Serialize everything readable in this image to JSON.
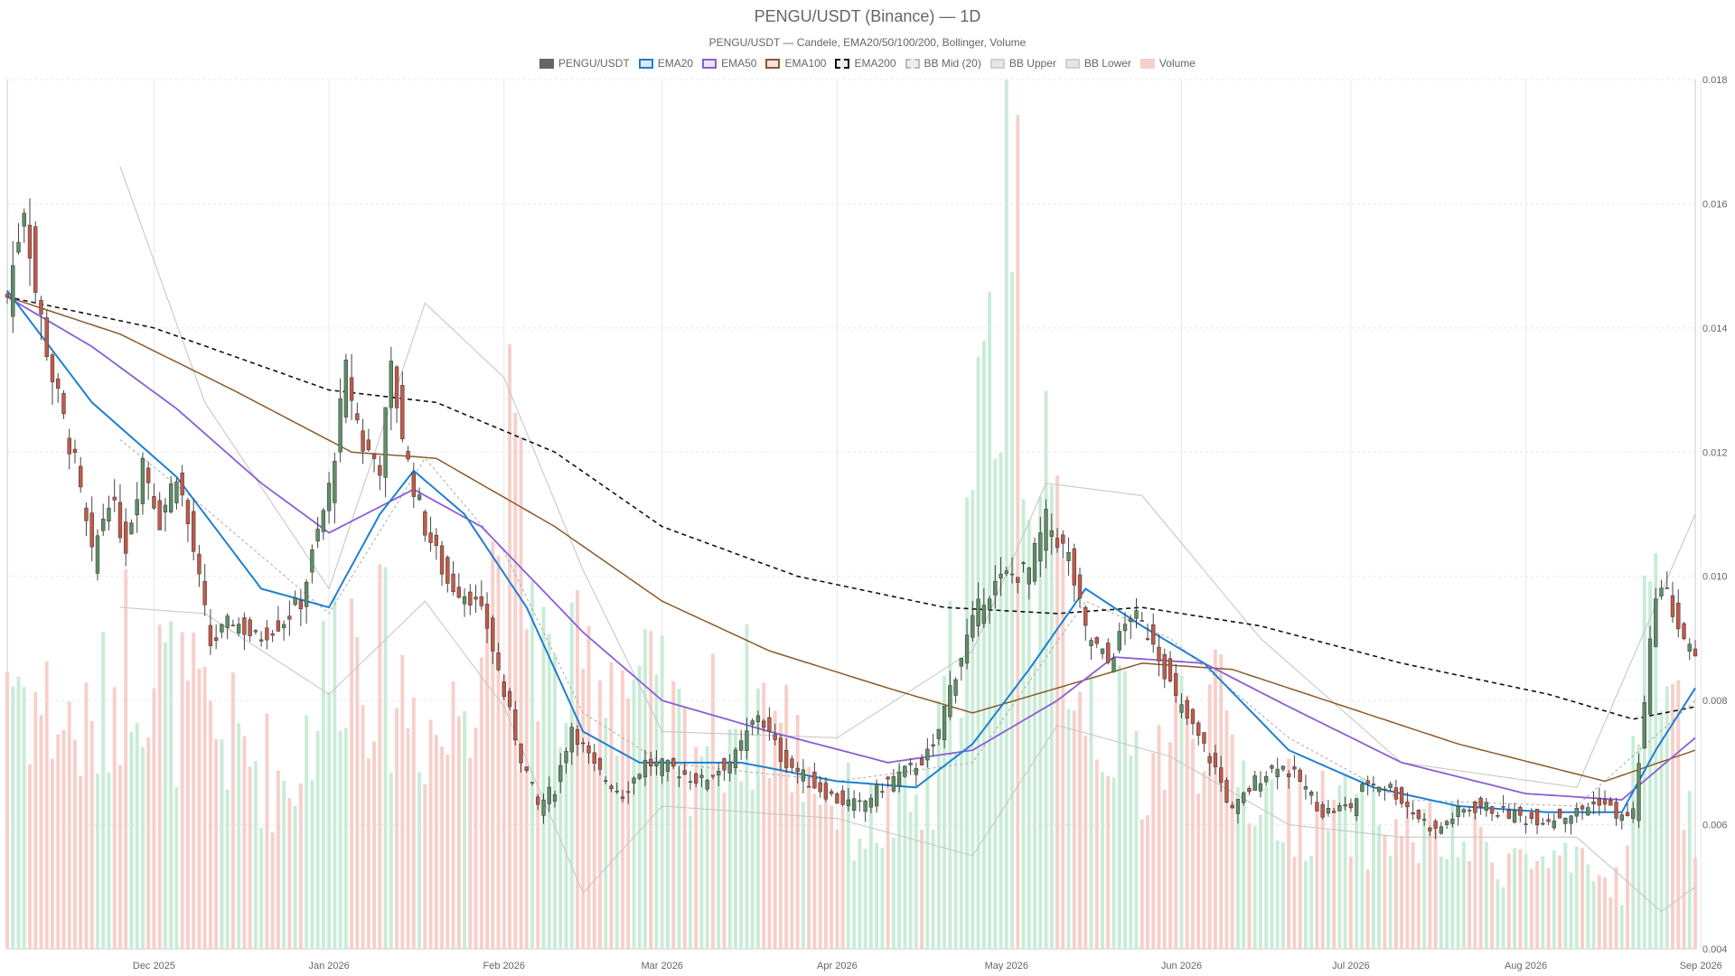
{
  "chart_data": {
    "type": "candlestick",
    "title": "PENGU/USDT (Binance) — 1D",
    "subtitle": "PENGU/USDT — Candele, EMA20/50/100/200, Bollinger, Volume",
    "legend": [
      {
        "label": "PENGU/USDT",
        "fill": "#666666",
        "stroke": "#666666",
        "dashed": false
      },
      {
        "label": "EMA20",
        "fill": "#dbeaf6",
        "stroke": "#1f7fd1",
        "dashed": false
      },
      {
        "label": "EMA50",
        "fill": "#ece4f8",
        "stroke": "#8a5ed6",
        "dashed": false
      },
      {
        "label": "EMA100",
        "fill": "#efe5dc",
        "stroke": "#8b5a2b",
        "dashed": false
      },
      {
        "label": "EMA200",
        "fill": "#eeeeee",
        "stroke": "#111111",
        "dashed": true
      },
      {
        "label": "BB Mid (20)",
        "fill": "#eeeeee",
        "stroke": "#bbbbbb",
        "dashed": true
      },
      {
        "label": "BB Upper",
        "fill": "#e6e6e6",
        "stroke": "#d0d0d0",
        "dashed": false
      },
      {
        "label": "BB Lower",
        "fill": "#e6e6e6",
        "stroke": "#d0d0d0",
        "dashed": false
      },
      {
        "label": "Volume",
        "fill": "#f7cfc9",
        "stroke": "#f7cfc9",
        "dashed": false
      }
    ],
    "y_axis": {
      "min": 0.004,
      "max": 0.018,
      "position": "right",
      "ticks": [
        "0.004",
        "0.006",
        "0.008",
        "0.010",
        "0.012",
        "0.014",
        "0.016",
        "0.018"
      ]
    },
    "x_axis": {
      "start": "2025-11-05",
      "end": "2026-08-31",
      "ticks": [
        {
          "label": "Dec 2025",
          "date": "2025-12-01"
        },
        {
          "label": "Jan 2026",
          "date": "2026-01-01"
        },
        {
          "label": "Feb 2026",
          "date": "2026-02-01"
        },
        {
          "label": "Mar 2026",
          "date": "2026-03-01"
        },
        {
          "label": "Apr 2026",
          "date": "2026-04-01"
        },
        {
          "label": "May 2026",
          "date": "2026-05-01"
        },
        {
          "label": "Jun 2026",
          "date": "2026-06-01"
        },
        {
          "label": "Jul 2026",
          "date": "2026-07-01"
        },
        {
          "label": "Aug 2026",
          "date": "2026-08-01"
        },
        {
          "label": "Sep 2026",
          "date": "2026-09-01"
        }
      ]
    },
    "price_path": [
      [
        "2025-11-05",
        0.0145
      ],
      [
        "2025-11-08",
        0.016
      ],
      [
        "2025-11-10",
        0.0146
      ],
      [
        "2025-11-13",
        0.0132
      ],
      [
        "2025-11-17",
        0.0118
      ],
      [
        "2025-11-20",
        0.0103
      ],
      [
        "2025-11-23",
        0.0113
      ],
      [
        "2025-11-26",
        0.0105
      ],
      [
        "2025-11-29",
        0.0119
      ],
      [
        "2025-12-02",
        0.0109
      ],
      [
        "2025-12-05",
        0.0117
      ],
      [
        "2025-12-08",
        0.0104
      ],
      [
        "2025-12-11",
        0.0089
      ],
      [
        "2025-12-15",
        0.0093
      ],
      [
        "2025-12-19",
        0.009
      ],
      [
        "2025-12-24",
        0.0093
      ],
      [
        "2025-12-27",
        0.0096
      ],
      [
        "2026-01-01",
        0.0114
      ],
      [
        "2026-01-04",
        0.0133
      ],
      [
        "2026-01-07",
        0.0121
      ],
      [
        "2026-01-10",
        0.0118
      ],
      [
        "2026-01-12",
        0.0133
      ],
      [
        "2026-01-15",
        0.0118
      ],
      [
        "2026-01-18",
        0.0108
      ],
      [
        "2026-01-22",
        0.0099
      ],
      [
        "2026-01-26",
        0.0097
      ],
      [
        "2026-01-29",
        0.0092
      ],
      [
        "2026-02-01",
        0.0081
      ],
      [
        "2026-02-04",
        0.0071
      ],
      [
        "2026-02-07",
        0.0063
      ],
      [
        "2026-02-10",
        0.0066
      ],
      [
        "2026-02-13",
        0.0076
      ],
      [
        "2026-02-17",
        0.0069
      ],
      [
        "2026-02-22",
        0.0065
      ],
      [
        "2026-02-26",
        0.007
      ],
      [
        "2026-03-03",
        0.0069
      ],
      [
        "2026-03-08",
        0.0067
      ],
      [
        "2026-03-14",
        0.0071
      ],
      [
        "2026-03-18",
        0.0078
      ],
      [
        "2026-03-22",
        0.0071
      ],
      [
        "2026-03-27",
        0.0067
      ],
      [
        "2026-04-01",
        0.0064
      ],
      [
        "2026-04-05",
        0.0063
      ],
      [
        "2026-04-10",
        0.0067
      ],
      [
        "2026-04-14",
        0.0069
      ],
      [
        "2026-04-18",
        0.0072
      ],
      [
        "2026-04-21",
        0.0082
      ],
      [
        "2026-04-24",
        0.009
      ],
      [
        "2026-04-27",
        0.0097
      ],
      [
        "2026-05-01",
        0.01
      ],
      [
        "2026-05-05",
        0.0101
      ],
      [
        "2026-05-08",
        0.0109
      ],
      [
        "2026-05-12",
        0.0103
      ],
      [
        "2026-05-15",
        0.0091
      ],
      [
        "2026-05-19",
        0.0086
      ],
      [
        "2026-05-23",
        0.0094
      ],
      [
        "2026-05-27",
        0.009
      ],
      [
        "2026-05-31",
        0.008
      ],
      [
        "2026-06-04",
        0.0074
      ],
      [
        "2026-06-07",
        0.0069
      ],
      [
        "2026-06-10",
        0.0062
      ],
      [
        "2026-06-14",
        0.0067
      ],
      [
        "2026-06-18",
        0.007
      ],
      [
        "2026-06-22",
        0.0067
      ],
      [
        "2026-06-26",
        0.0062
      ],
      [
        "2026-07-01",
        0.0063
      ],
      [
        "2026-07-04",
        0.0067
      ],
      [
        "2026-07-08",
        0.0066
      ],
      [
        "2026-07-12",
        0.0062
      ],
      [
        "2026-07-16",
        0.0059
      ],
      [
        "2026-07-20",
        0.0062
      ],
      [
        "2026-07-24",
        0.0063
      ],
      [
        "2026-07-28",
        0.0062
      ],
      [
        "2026-08-01",
        0.0061
      ],
      [
        "2026-08-05",
        0.0061
      ],
      [
        "2026-08-10",
        0.0062
      ],
      [
        "2026-08-14",
        0.0064
      ],
      [
        "2026-08-18",
        0.0061
      ],
      [
        "2026-08-20",
        0.0062
      ],
      [
        "2026-08-22",
        0.0079
      ],
      [
        "2026-08-24",
        0.0098
      ],
      [
        "2026-08-26",
        0.0097
      ],
      [
        "2026-08-28",
        0.0092
      ],
      [
        "2026-08-31",
        0.0086
      ]
    ],
    "indicators": {
      "EMA20": [
        [
          "2025-11-05",
          0.0146
        ],
        [
          "2025-11-20",
          0.0128
        ],
        [
          "2025-12-05",
          0.0116
        ],
        [
          "2025-12-20",
          0.0098
        ],
        [
          "2026-01-01",
          0.0095
        ],
        [
          "2026-01-10",
          0.011
        ],
        [
          "2026-01-16",
          0.0117
        ],
        [
          "2026-01-25",
          0.011
        ],
        [
          "2026-02-05",
          0.0095
        ],
        [
          "2026-02-15",
          0.0075
        ],
        [
          "2026-02-25",
          0.007
        ],
        [
          "2026-03-15",
          0.007
        ],
        [
          "2026-04-01",
          0.0067
        ],
        [
          "2026-04-15",
          0.0066
        ],
        [
          "2026-04-25",
          0.0073
        ],
        [
          "2026-05-05",
          0.0085
        ],
        [
          "2026-05-15",
          0.0098
        ],
        [
          "2026-05-25",
          0.0092
        ],
        [
          "2026-06-05",
          0.0086
        ],
        [
          "2026-06-20",
          0.0072
        ],
        [
          "2026-07-05",
          0.0066
        ],
        [
          "2026-07-20",
          0.0063
        ],
        [
          "2026-08-05",
          0.0062
        ],
        [
          "2026-08-18",
          0.0062
        ],
        [
          "2026-08-24",
          0.0072
        ],
        [
          "2026-08-31",
          0.0082
        ]
      ],
      "EMA50": [
        [
          "2025-11-05",
          0.0145
        ],
        [
          "2025-11-20",
          0.0137
        ],
        [
          "2025-12-05",
          0.0127
        ],
        [
          "2025-12-20",
          0.0115
        ],
        [
          "2026-01-01",
          0.0107
        ],
        [
          "2026-01-16",
          0.0114
        ],
        [
          "2026-01-28",
          0.0108
        ],
        [
          "2026-02-15",
          0.0091
        ],
        [
          "2026-03-01",
          0.008
        ],
        [
          "2026-03-20",
          0.0075
        ],
        [
          "2026-04-10",
          0.007
        ],
        [
          "2026-04-25",
          0.0072
        ],
        [
          "2026-05-10",
          0.008
        ],
        [
          "2026-05-20",
          0.0087
        ],
        [
          "2026-06-05",
          0.0086
        ],
        [
          "2026-06-20",
          0.0079
        ],
        [
          "2026-07-10",
          0.007
        ],
        [
          "2026-08-01",
          0.0065
        ],
        [
          "2026-08-18",
          0.0064
        ],
        [
          "2026-08-31",
          0.0074
        ]
      ],
      "EMA100": [
        [
          "2025-11-05",
          0.0145
        ],
        [
          "2025-11-25",
          0.0139
        ],
        [
          "2025-12-15",
          0.013
        ],
        [
          "2026-01-05",
          0.012
        ],
        [
          "2026-01-20",
          0.0119
        ],
        [
          "2026-02-10",
          0.0108
        ],
        [
          "2026-03-01",
          0.0096
        ],
        [
          "2026-03-20",
          0.0088
        ],
        [
          "2026-04-10",
          0.0082
        ],
        [
          "2026-04-25",
          0.0078
        ],
        [
          "2026-05-10",
          0.0082
        ],
        [
          "2026-05-25",
          0.0086
        ],
        [
          "2026-06-10",
          0.0085
        ],
        [
          "2026-06-30",
          0.0079
        ],
        [
          "2026-07-20",
          0.0073
        ],
        [
          "2026-08-15",
          0.0067
        ],
        [
          "2026-08-31",
          0.0072
        ]
      ],
      "EMA200": [
        [
          "2025-11-05",
          0.0145
        ],
        [
          "2025-12-01",
          0.014
        ],
        [
          "2026-01-01",
          0.013
        ],
        [
          "2026-01-20",
          0.0128
        ],
        [
          "2026-02-10",
          0.012
        ],
        [
          "2026-03-01",
          0.0108
        ],
        [
          "2026-03-25",
          0.01
        ],
        [
          "2026-04-20",
          0.0095
        ],
        [
          "2026-05-10",
          0.0094
        ],
        [
          "2026-05-25",
          0.0095
        ],
        [
          "2026-06-15",
          0.0092
        ],
        [
          "2026-07-10",
          0.0086
        ],
        [
          "2026-08-05",
          0.0081
        ],
        [
          "2026-08-20",
          0.0077
        ],
        [
          "2026-08-31",
          0.0079
        ]
      ],
      "BB Mid (20)": [
        [
          "2025-11-25",
          0.0122
        ],
        [
          "2025-12-10",
          0.0111
        ],
        [
          "2026-01-01",
          0.0094
        ],
        [
          "2026-01-18",
          0.0119
        ],
        [
          "2026-02-01",
          0.0104
        ],
        [
          "2026-02-15",
          0.0078
        ],
        [
          "2026-03-01",
          0.007
        ],
        [
          "2026-04-01",
          0.0067
        ],
        [
          "2026-04-25",
          0.007
        ],
        [
          "2026-05-15",
          0.0096
        ],
        [
          "2026-05-30",
          0.009
        ],
        [
          "2026-06-20",
          0.0074
        ],
        [
          "2026-07-10",
          0.0064
        ],
        [
          "2026-08-10",
          0.0063
        ],
        [
          "2026-08-31",
          0.008
        ]
      ],
      "BB Upper": [
        [
          "2025-11-25",
          0.0166
        ],
        [
          "2025-12-10",
          0.0128
        ],
        [
          "2026-01-01",
          0.0098
        ],
        [
          "2026-01-18",
          0.0144
        ],
        [
          "2026-02-01",
          0.0132
        ],
        [
          "2026-02-15",
          0.0101
        ],
        [
          "2026-03-01",
          0.0075
        ],
        [
          "2026-04-01",
          0.0074
        ],
        [
          "2026-04-25",
          0.0088
        ],
        [
          "2026-05-08",
          0.0115
        ],
        [
          "2026-05-25",
          0.0113
        ],
        [
          "2026-06-15",
          0.009
        ],
        [
          "2026-07-10",
          0.007
        ],
        [
          "2026-08-10",
          0.0066
        ],
        [
          "2026-08-31",
          0.011
        ]
      ],
      "BB Lower": [
        [
          "2025-11-25",
          0.0095
        ],
        [
          "2025-12-10",
          0.0094
        ],
        [
          "2026-01-01",
          0.0081
        ],
        [
          "2026-01-18",
          0.0096
        ],
        [
          "2026-02-01",
          0.0079
        ],
        [
          "2026-02-15",
          0.0049
        ],
        [
          "2026-03-01",
          0.0063
        ],
        [
          "2026-04-01",
          0.0061
        ],
        [
          "2026-04-25",
          0.0055
        ],
        [
          "2026-05-10",
          0.0076
        ],
        [
          "2026-05-30",
          0.0071
        ],
        [
          "2026-06-20",
          0.006
        ],
        [
          "2026-07-10",
          0.0058
        ],
        [
          "2026-08-10",
          0.0058
        ],
        [
          "2026-08-25",
          0.0046
        ],
        [
          "2026-08-31",
          0.005
        ]
      ]
    },
    "volume": {
      "relative_max": 1.0,
      "path": [
        [
          "2025-11-05",
          0.35
        ],
        [
          "2025-11-10",
          0.3
        ],
        [
          "2025-11-20",
          0.25
        ],
        [
          "2025-11-27",
          0.38
        ],
        [
          "2025-12-05",
          0.3
        ],
        [
          "2025-12-15",
          0.25
        ],
        [
          "2025-12-25",
          0.2
        ],
        [
          "2026-01-04",
          0.4
        ],
        [
          "2026-01-12",
          0.33
        ],
        [
          "2026-01-22",
          0.25
        ],
        [
          "2026-02-02",
          0.55
        ],
        [
          "2026-02-10",
          0.3
        ],
        [
          "2026-02-20",
          0.35
        ],
        [
          "2026-03-05",
          0.25
        ],
        [
          "2026-03-18",
          0.3
        ],
        [
          "2026-04-05",
          0.15
        ],
        [
          "2026-04-18",
          0.18
        ],
        [
          "2026-04-23",
          0.42
        ],
        [
          "2026-04-29",
          0.72
        ],
        [
          "2026-05-01",
          1.0
        ],
        [
          "2026-05-06",
          0.55
        ],
        [
          "2026-05-15",
          0.32
        ],
        [
          "2026-05-25",
          0.22
        ],
        [
          "2026-06-05",
          0.3
        ],
        [
          "2026-06-15",
          0.18
        ],
        [
          "2026-07-05",
          0.15
        ],
        [
          "2026-07-20",
          0.13
        ],
        [
          "2026-08-05",
          0.1
        ],
        [
          "2026-08-18",
          0.08
        ],
        [
          "2026-08-24",
          0.48
        ],
        [
          "2026-08-27",
          0.3
        ],
        [
          "2026-08-31",
          0.12
        ]
      ]
    },
    "colors": {
      "up": "#5e8e66",
      "down": "#c05a4a",
      "up_volume": "#c9ecd6",
      "down_volume": "#f7cfc9",
      "grid": "#e8e8e8",
      "text": "#666666"
    },
    "grid": true,
    "legend_position": "top"
  }
}
